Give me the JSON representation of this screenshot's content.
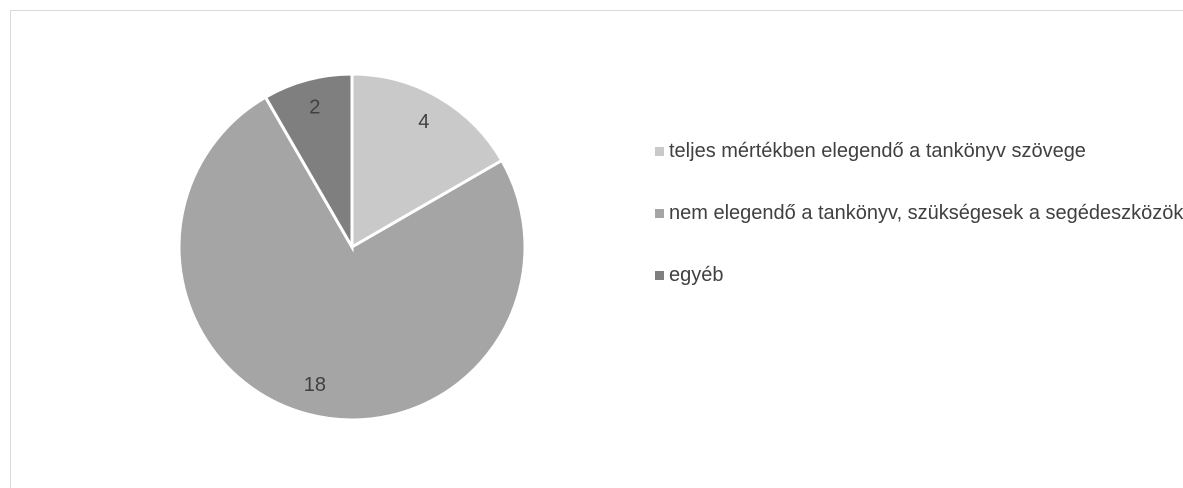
{
  "chart_data": {
    "type": "pie",
    "categories": [
      "teljes mértékben elegendő a tankönyv szövege",
      "nem elegendő a tankönyv, szükségesek a segédeszközök",
      "egyéb"
    ],
    "values": [
      4,
      18,
      2
    ],
    "colors": [
      "#c9c9c9",
      "#a5a5a5",
      "#7f7f7f"
    ],
    "legend": "right"
  }
}
